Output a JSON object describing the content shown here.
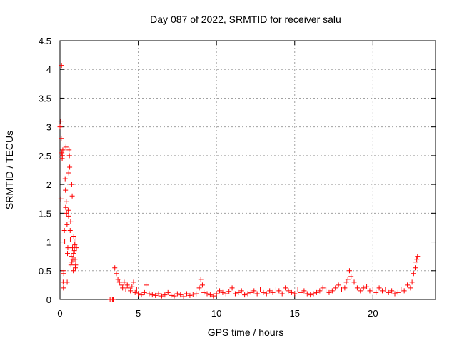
{
  "chart_data": {
    "type": "scatter",
    "title": "Day 087 of 2022, SRMTID for receiver salu",
    "xlabel": "GPS time / hours",
    "ylabel": "SRMTID / TECUs",
    "xlim": [
      0,
      24
    ],
    "ylim": [
      0,
      4.5
    ],
    "xticks": [
      0,
      5,
      10,
      15,
      20
    ],
    "xtick_labels": [
      "0",
      "5",
      "10",
      "15",
      "20"
    ],
    "yticks": [
      0,
      0.5,
      1,
      1.5,
      2,
      2.5,
      3,
      3.5,
      4,
      4.5
    ],
    "ytick_labels": [
      "0",
      "0.5",
      "1",
      "1.5",
      "2",
      "2.5",
      "3",
      "3.5",
      "4",
      "4.5"
    ],
    "grid": true,
    "marker": "+",
    "series": [
      {
        "name": "SRMTID",
        "color": "#ff0000",
        "x": [
          0.0,
          0.05,
          0.08,
          0.1,
          0.12,
          0.15,
          0.18,
          0.2,
          0.22,
          0.25,
          0.28,
          0.3,
          0.33,
          0.35,
          0.38,
          0.4,
          0.42,
          0.45,
          0.48,
          0.5,
          0.52,
          0.55,
          0.58,
          0.6,
          0.62,
          0.65,
          0.68,
          0.7,
          0.72,
          0.75,
          0.78,
          0.8,
          0.82,
          0.85,
          0.88,
          0.9,
          0.92,
          0.95,
          0.98,
          1.0,
          1.02,
          1.05,
          0.06,
          0.14,
          0.24,
          0.36,
          0.46,
          0.56,
          0.66,
          0.76,
          0.86,
          0.96,
          3.2,
          3.35,
          3.4,
          3.5,
          3.6,
          3.7,
          3.8,
          3.9,
          4.0,
          4.1,
          4.2,
          4.3,
          4.4,
          4.5,
          4.6,
          4.7,
          4.8,
          4.9,
          5.0,
          5.2,
          5.4,
          5.5,
          5.7,
          5.9,
          6.1,
          6.3,
          6.5,
          6.7,
          6.9,
          7.1,
          7.3,
          7.5,
          7.7,
          7.9,
          8.1,
          8.3,
          8.5,
          8.7,
          8.9,
          9.0,
          9.1,
          9.2,
          9.4,
          9.6,
          9.8,
          10.0,
          10.2,
          10.4,
          10.6,
          10.8,
          11.0,
          11.2,
          11.4,
          11.6,
          11.8,
          12.0,
          12.2,
          12.4,
          12.6,
          12.8,
          13.0,
          13.2,
          13.4,
          13.6,
          13.8,
          14.0,
          14.2,
          14.4,
          14.6,
          14.8,
          15.0,
          15.2,
          15.4,
          15.6,
          15.8,
          16.0,
          16.2,
          16.4,
          16.6,
          16.8,
          17.0,
          17.2,
          17.4,
          17.6,
          17.8,
          18.0,
          18.2,
          18.3,
          18.4,
          18.5,
          18.6,
          18.8,
          19.0,
          19.2,
          19.4,
          19.6,
          19.8,
          20.0,
          20.2,
          20.4,
          20.6,
          20.8,
          21.0,
          21.2,
          21.4,
          21.6,
          21.8,
          22.0,
          22.2,
          22.4,
          22.5,
          22.6,
          22.7,
          22.75,
          22.8,
          22.85
        ],
        "y": [
          3.0,
          3.1,
          2.8,
          4.07,
          2.55,
          2.5,
          2.6,
          0.3,
          0.2,
          0.5,
          1.2,
          1.0,
          2.1,
          1.9,
          2.65,
          1.7,
          1.5,
          1.3,
          0.8,
          0.9,
          1.55,
          1.45,
          2.6,
          2.5,
          2.3,
          1.2,
          1.35,
          0.6,
          0.75,
          2.0,
          1.8,
          0.9,
          0.7,
          0.5,
          1.1,
          1.0,
          0.85,
          0.95,
          0.55,
          0.6,
          1.05,
          0.9,
          1.75,
          2.45,
          0.45,
          1.6,
          0.3,
          2.2,
          1.05,
          0.65,
          0.8,
          0.7,
          0.0,
          0.0,
          0.0,
          0.55,
          0.45,
          0.35,
          0.3,
          0.25,
          0.2,
          0.3,
          0.18,
          0.25,
          0.2,
          0.15,
          0.22,
          0.3,
          0.12,
          0.18,
          0.1,
          0.08,
          0.12,
          0.25,
          0.1,
          0.08,
          0.07,
          0.1,
          0.06,
          0.08,
          0.12,
          0.07,
          0.06,
          0.1,
          0.08,
          0.05,
          0.1,
          0.07,
          0.09,
          0.1,
          0.2,
          0.35,
          0.25,
          0.12,
          0.1,
          0.08,
          0.06,
          0.1,
          0.15,
          0.12,
          0.1,
          0.14,
          0.2,
          0.1,
          0.12,
          0.15,
          0.08,
          0.1,
          0.12,
          0.15,
          0.1,
          0.18,
          0.12,
          0.1,
          0.15,
          0.12,
          0.18,
          0.15,
          0.1,
          0.2,
          0.15,
          0.12,
          0.1,
          0.18,
          0.12,
          0.15,
          0.1,
          0.08,
          0.1,
          0.12,
          0.15,
          0.2,
          0.18,
          0.12,
          0.15,
          0.2,
          0.25,
          0.18,
          0.2,
          0.3,
          0.35,
          0.5,
          0.4,
          0.3,
          0.2,
          0.15,
          0.2,
          0.22,
          0.15,
          0.18,
          0.12,
          0.2,
          0.15,
          0.18,
          0.12,
          0.15,
          0.1,
          0.12,
          0.18,
          0.15,
          0.25,
          0.2,
          0.3,
          0.45,
          0.55,
          0.65,
          0.7,
          0.75
        ]
      }
    ]
  }
}
